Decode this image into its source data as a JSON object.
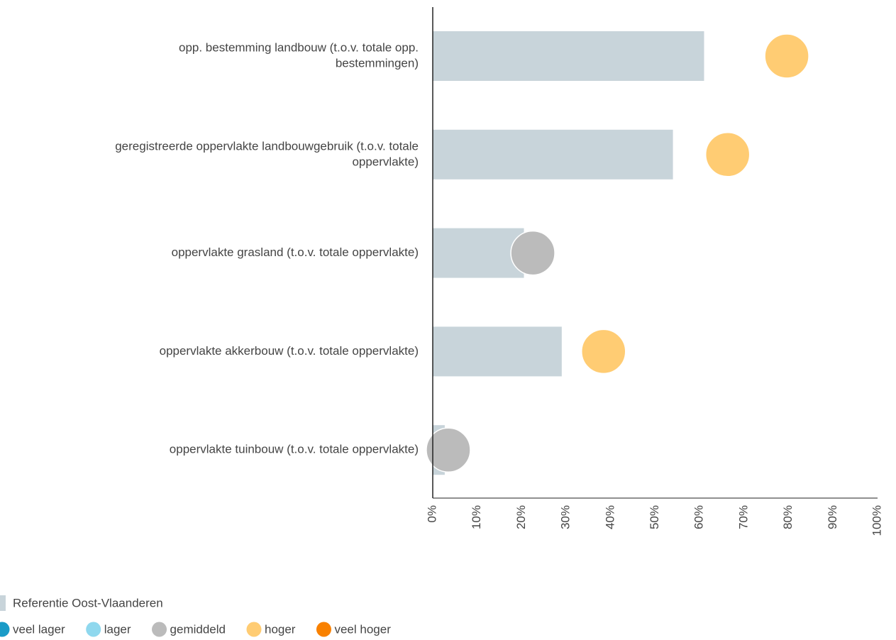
{
  "chart_data": {
    "type": "bar",
    "categories": [
      [
        "opp. bestemming landbouw (t.o.v. totale opp.",
        "bestemmingen)"
      ],
      [
        "geregistreerde oppervlakte landbouwgebruik (t.o.v. totale",
        "oppervlakte)"
      ],
      [
        "oppervlakte grasland (t.o.v. totale oppervlakte)"
      ],
      [
        "oppervlakte akkerbouw (t.o.v. totale oppervlakte)"
      ],
      [
        "oppervlakte tuinbouw (t.o.v. totale oppervlakte)"
      ]
    ],
    "series": [
      {
        "name": "Referentie Oost-Vlaanderen",
        "color": "#c8d4da",
        "values": [
          61,
          54,
          20.5,
          29,
          2.7
        ]
      }
    ],
    "dots": {
      "values": [
        79.6,
        66.3,
        22.5,
        38.4,
        3.5
      ],
      "colors": [
        "#ffcc73",
        "#ffcc73",
        "#bbbbbb",
        "#ffcc73",
        "#bbbbbb"
      ]
    },
    "classes": [
      {
        "name": "veel lager",
        "color": "#1a9bc7"
      },
      {
        "name": "lager",
        "color": "#8fd8ee"
      },
      {
        "name": "gemiddeld",
        "color": "#bbbbbb"
      },
      {
        "name": "hoger",
        "color": "#ffcc73"
      },
      {
        "name": "veel hoger",
        "color": "#f98100"
      }
    ],
    "xlim": [
      0,
      100
    ],
    "xticks": [
      {
        "value": 0,
        "label": "0%"
      },
      {
        "value": 10,
        "label": "10%"
      },
      {
        "value": 20,
        "label": "20%"
      },
      {
        "value": 30,
        "label": "30%"
      },
      {
        "value": 40,
        "label": "40%"
      },
      {
        "value": 50,
        "label": "50%"
      },
      {
        "value": 60,
        "label": "60%"
      },
      {
        "value": 70,
        "label": "70%"
      },
      {
        "value": 80,
        "label": "80%"
      },
      {
        "value": 90,
        "label": "90%"
      },
      {
        "value": 100,
        "label": "100%"
      }
    ]
  }
}
